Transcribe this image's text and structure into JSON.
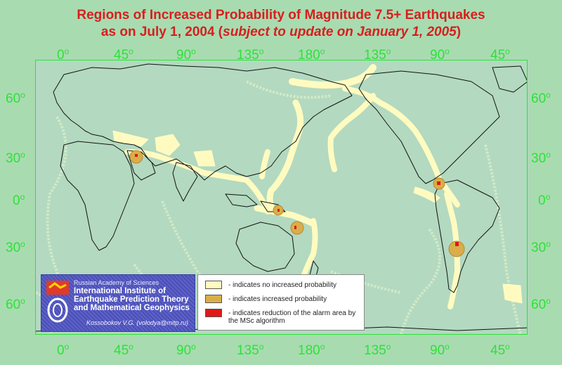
{
  "title": {
    "line1": "Regions of Increased Probability of Magnitude 7.5+ Earthquakes",
    "line2_prefix": "as on July 1, 2004 (",
    "line2_italic": "subject to update on January 1, 2005",
    "line2_suffix": ")"
  },
  "axes": {
    "lon_ticks": [
      "0",
      "45",
      "90",
      "135",
      "180",
      "135",
      "90",
      "45"
    ],
    "lat_ticks": [
      "60",
      "30",
      "0",
      "30",
      "60"
    ],
    "degree_symbol": "o"
  },
  "legend": {
    "items": [
      {
        "color": "#fffbc0",
        "label": "- indicates no increased probability"
      },
      {
        "color": "#d9ae4a",
        "label": "- indicates increased probability"
      },
      {
        "color": "#e01818",
        "label": "- indicates reduction of the alarm area by the MSc algorithm"
      }
    ]
  },
  "institute": {
    "academy": "Russian Academy of Sciences",
    "name": "International Institute of Earthquake Prediction Theory and Mathematical Geophysics",
    "contact": "Kossobokov V.G. (volodya@mitp.ru)"
  },
  "colors": {
    "background": "#a8dcb0",
    "map": "#b3d9c0",
    "title": "#d81e1e",
    "ticks": "#2ee03a",
    "zone": "#fffbc0",
    "increased": "#d9ae4a",
    "reduced": "#e01818"
  }
}
